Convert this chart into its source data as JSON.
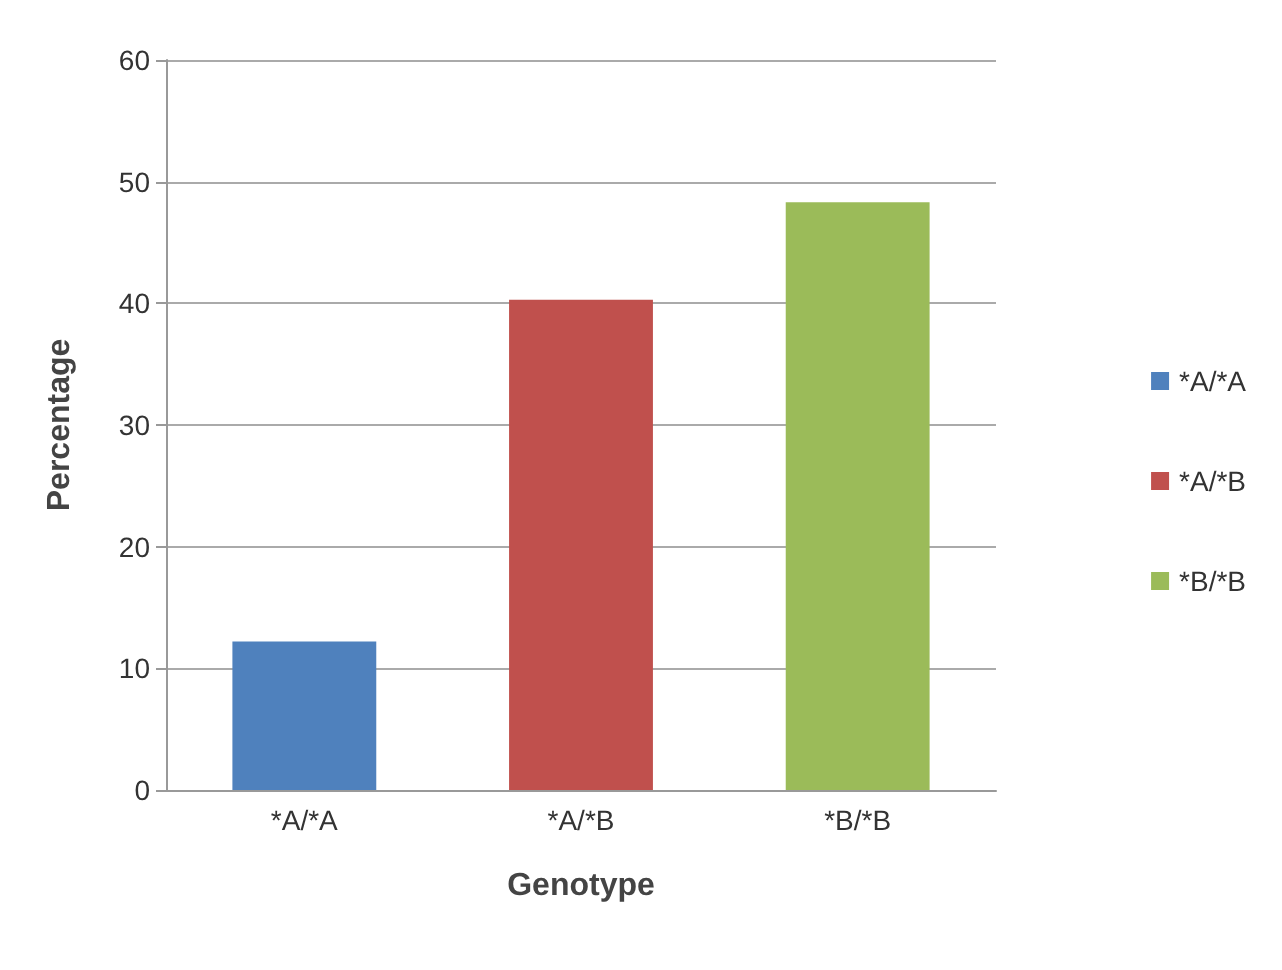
{
  "chart_data": {
    "type": "bar",
    "xlabel": "Genotype",
    "ylabel": "Percentage",
    "categories": [
      "*A/*A",
      "*A/*B",
      "*B/*B"
    ],
    "series": [
      {
        "name": "*A/*A",
        "color": "#4f81bd",
        "values": [
          12.2,
          null,
          null
        ]
      },
      {
        "name": "*A/*B",
        "color": "#c0504d",
        "values": [
          null,
          40.3,
          null
        ]
      },
      {
        "name": "*B/*B",
        "color": "#9bbb59",
        "values": [
          null,
          null,
          48.3
        ]
      }
    ],
    "ylim": [
      0,
      60
    ],
    "yticks": [
      0,
      10,
      20,
      30,
      40,
      50,
      60
    ],
    "grid": "y",
    "legend": "right"
  }
}
